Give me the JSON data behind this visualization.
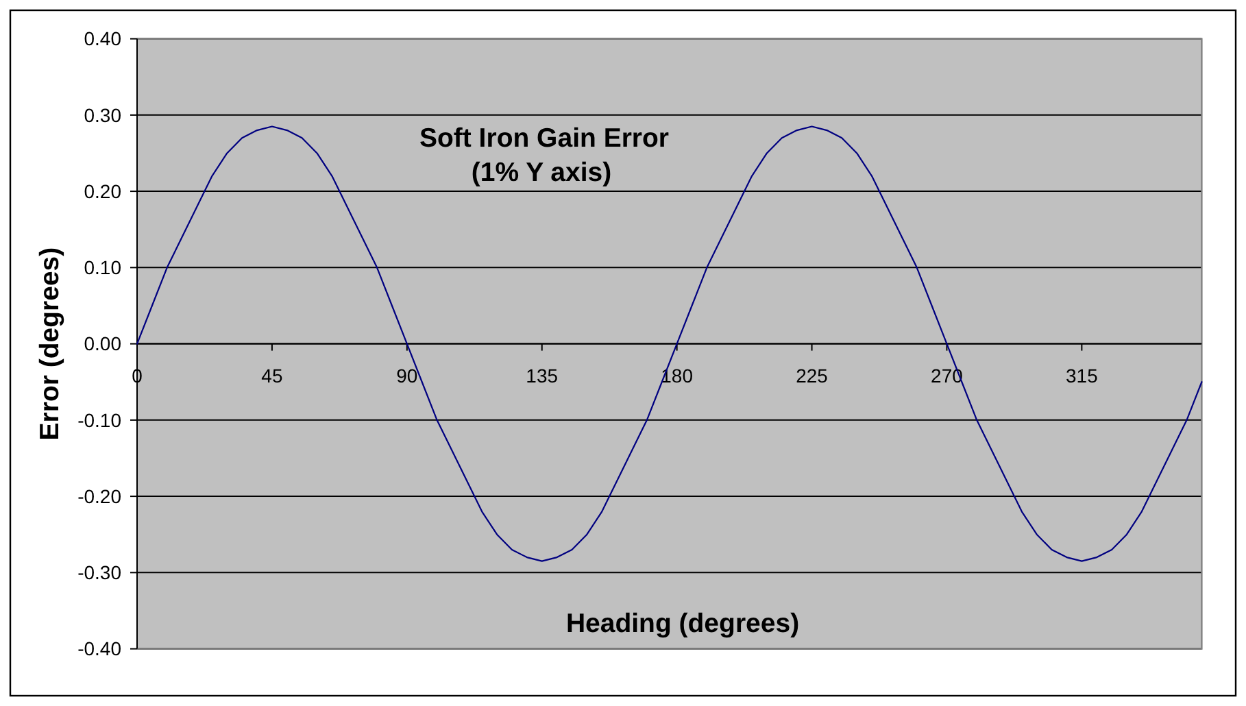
{
  "chart_data": {
    "type": "line",
    "title": "Soft Iron Gain Error",
    "subtitle": "(1% Y axis)",
    "xlabel": "Heading (degrees)",
    "ylabel": "Error (degrees)",
    "x": [
      0,
      5,
      10,
      15,
      20,
      25,
      30,
      35,
      40,
      45,
      50,
      55,
      60,
      65,
      70,
      75,
      80,
      85,
      90,
      95,
      100,
      105,
      110,
      115,
      120,
      125,
      130,
      135,
      140,
      145,
      150,
      155,
      160,
      165,
      170,
      175,
      180,
      185,
      190,
      195,
      200,
      205,
      210,
      215,
      220,
      225,
      230,
      235,
      240,
      245,
      250,
      255,
      260,
      265,
      270,
      275,
      280,
      285,
      290,
      295,
      300,
      305,
      310,
      315,
      320,
      325,
      330,
      335,
      340,
      345,
      350,
      355
    ],
    "series": [
      {
        "color": "#000080",
        "values": [
          0,
          0.05,
          0.1,
          0.14,
          0.18,
          0.22,
          0.25,
          0.27,
          0.28,
          0.285,
          0.28,
          0.27,
          0.25,
          0.22,
          0.18,
          0.14,
          0.1,
          0.05,
          0,
          -0.05,
          -0.1,
          -0.14,
          -0.18,
          -0.22,
          -0.25,
          -0.27,
          -0.28,
          -0.285,
          -0.28,
          -0.27,
          -0.25,
          -0.22,
          -0.18,
          -0.14,
          -0.1,
          -0.05,
          0,
          0.05,
          0.1,
          0.14,
          0.18,
          0.22,
          0.25,
          0.27,
          0.28,
          0.285,
          0.28,
          0.27,
          0.25,
          0.22,
          0.18,
          0.14,
          0.1,
          0.05,
          0,
          -0.05,
          -0.1,
          -0.14,
          -0.18,
          -0.22,
          -0.25,
          -0.27,
          -0.28,
          -0.285,
          -0.28,
          -0.27,
          -0.25,
          -0.22,
          -0.18,
          -0.14,
          -0.1,
          -0.05
        ]
      }
    ],
    "xlim": [
      0,
      355
    ],
    "xticks": [
      0,
      45,
      90,
      135,
      180,
      225,
      270,
      315
    ],
    "ylim": [
      -0.4,
      0.4
    ],
    "yticks": [
      {
        "value": -0.4,
        "label": "-0.40"
      },
      {
        "value": -0.3,
        "label": "-0.30"
      },
      {
        "value": -0.2,
        "label": "-0.20"
      },
      {
        "value": -0.1,
        "label": "-0.10"
      },
      {
        "value": 0,
        "label": "0.00"
      },
      {
        "value": 0.1,
        "label": "0.10"
      },
      {
        "value": 0.2,
        "label": "0.20"
      },
      {
        "value": 0.3,
        "label": "0.30"
      },
      {
        "value": 0.4,
        "label": "0.40"
      }
    ],
    "grid": "y"
  }
}
